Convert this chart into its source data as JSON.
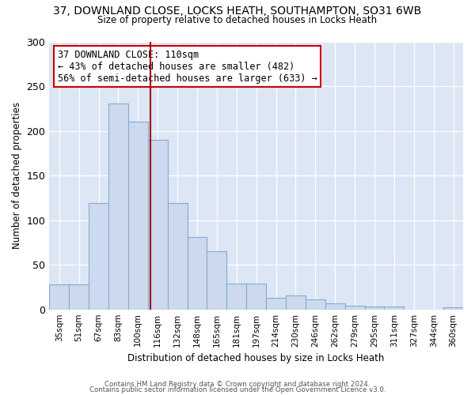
{
  "title_line1": "37, DOWNLAND CLOSE, LOCKS HEATH, SOUTHAMPTON, SO31 6WB",
  "title_line2": "Size of property relative to detached houses in Locks Heath",
  "xlabel": "Distribution of detached houses by size in Locks Heath",
  "ylabel": "Number of detached properties",
  "bar_color": "#ccd9ee",
  "bar_edge_color": "#88aad0",
  "background_color": "#dce6f5",
  "bin_labels": [
    "35sqm",
    "51sqm",
    "67sqm",
    "83sqm",
    "100sqm",
    "116sqm",
    "132sqm",
    "148sqm",
    "165sqm",
    "181sqm",
    "197sqm",
    "214sqm",
    "230sqm",
    "246sqm",
    "262sqm",
    "279sqm",
    "295sqm",
    "311sqm",
    "327sqm",
    "344sqm",
    "360sqm"
  ],
  "bar_heights": [
    28,
    28,
    119,
    231,
    210,
    190,
    119,
    81,
    65,
    29,
    29,
    13,
    16,
    11,
    7,
    4,
    3,
    3,
    0,
    0,
    2
  ],
  "ylim": [
    0,
    300
  ],
  "yticks": [
    0,
    50,
    100,
    150,
    200,
    250,
    300
  ],
  "vline_x": 4.63,
  "vline_color": "#aa0000",
  "annotation_title": "37 DOWNLAND CLOSE: 110sqm",
  "annotation_line1": "← 43% of detached houses are smaller (482)",
  "annotation_line2": "56% of semi-detached houses are larger (633) →",
  "footer_line1": "Contains HM Land Registry data © Crown copyright and database right 2024.",
  "footer_line2": "Contains public sector information licensed under the Open Government Licence v3.0."
}
